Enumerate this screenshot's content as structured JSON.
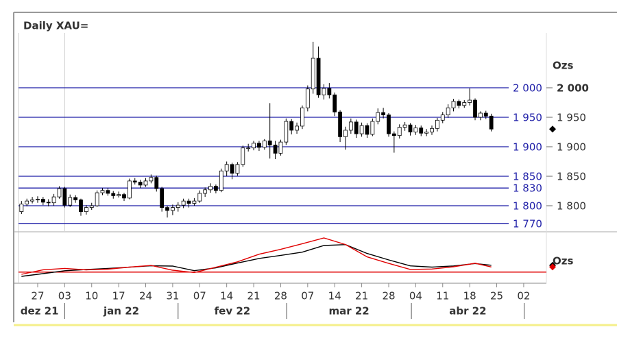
{
  "chart_data": {
    "type": "candlestick",
    "title": "Daily XAU=",
    "unit": "Ozs",
    "open": [
      1790,
      1803,
      1808,
      1810,
      1811,
      1806,
      1805,
      1815,
      1829,
      1801,
      1814,
      1810,
      1790,
      1797,
      1800,
      1822,
      1826,
      1821,
      1817,
      1819,
      1813,
      1842,
      1840,
      1835,
      1842,
      1848,
      1829,
      1797,
      1792,
      1797,
      1801,
      1808,
      1804,
      1808,
      1821,
      1827,
      1833,
      1826,
      1859,
      1870,
      1855,
      1870,
      1898,
      1898,
      1906,
      1899,
      1910,
      1903,
      1889,
      1908,
      1943,
      1928,
      1935,
      1966,
      1998,
      2050,
      1988,
      1999,
      1988,
      1959,
      1917,
      1928,
      1942,
      1922,
      1936,
      1921,
      1943,
      1958,
      1954,
      1922,
      1919,
      1933,
      1937,
      1925,
      1932,
      1923,
      1925,
      1931,
      1945,
      1954,
      1966,
      1977,
      1970,
      1975,
      1979,
      1950,
      1957,
      1952
    ],
    "high": [
      1808,
      1812,
      1815,
      1816,
      1815,
      1811,
      1820,
      1833,
      1832,
      1819,
      1818,
      1812,
      1801,
      1805,
      1826,
      1830,
      1830,
      1825,
      1824,
      1822,
      1846,
      1847,
      1844,
      1847,
      1853,
      1851,
      1832,
      1800,
      1802,
      1806,
      1812,
      1812,
      1813,
      1826,
      1831,
      1838,
      1836,
      1863,
      1875,
      1873,
      1874,
      1902,
      1905,
      1910,
      1910,
      1913,
      1974,
      1910,
      1912,
      1948,
      1947,
      1941,
      1970,
      2004,
      2078,
      2070,
      2006,
      2008,
      1992,
      1962,
      1934,
      1948,
      1946,
      1941,
      1940,
      1948,
      1965,
      1966,
      1957,
      1926,
      1938,
      1942,
      1940,
      1937,
      1936,
      1930,
      1936,
      1949,
      1959,
      1972,
      1981,
      1980,
      1979,
      1999,
      1982,
      1960,
      1961,
      1956
    ],
    "low": [
      1786,
      1799,
      1804,
      1805,
      1801,
      1799,
      1800,
      1812,
      1797,
      1798,
      1805,
      1783,
      1785,
      1793,
      1798,
      1818,
      1817,
      1812,
      1814,
      1808,
      1811,
      1836,
      1830,
      1832,
      1838,
      1824,
      1790,
      1780,
      1784,
      1790,
      1796,
      1797,
      1800,
      1805,
      1815,
      1822,
      1821,
      1823,
      1850,
      1845,
      1851,
      1866,
      1892,
      1894,
      1893,
      1895,
      1880,
      1879,
      1885,
      1903,
      1921,
      1922,
      1930,
      1960,
      1990,
      1983,
      1980,
      1982,
      1952,
      1908,
      1895,
      1922,
      1915,
      1917,
      1915,
      1918,
      1938,
      1948,
      1917,
      1890,
      1914,
      1927,
      1919,
      1920,
      1918,
      1918,
      1920,
      1926,
      1940,
      1949,
      1960,
      1965,
      1966,
      1970,
      1945,
      1945,
      1947,
      1926
    ],
    "close": [
      1803,
      1808,
      1810,
      1811,
      1806,
      1805,
      1815,
      1829,
      1801,
      1814,
      1810,
      1790,
      1797,
      1800,
      1822,
      1826,
      1821,
      1817,
      1819,
      1813,
      1842,
      1840,
      1835,
      1842,
      1848,
      1829,
      1797,
      1792,
      1797,
      1801,
      1808,
      1804,
      1808,
      1821,
      1827,
      1833,
      1826,
      1859,
      1870,
      1855,
      1870,
      1898,
      1898,
      1906,
      1899,
      1910,
      1903,
      1889,
      1908,
      1943,
      1928,
      1935,
      1966,
      1998,
      2050,
      1988,
      1999,
      1988,
      1959,
      1917,
      1928,
      1942,
      1922,
      1936,
      1921,
      1943,
      1958,
      1954,
      1922,
      1919,
      1933,
      1937,
      1925,
      1932,
      1923,
      1925,
      1931,
      1945,
      1954,
      1966,
      1977,
      1970,
      1975,
      1979,
      1950,
      1957,
      1952,
      1930
    ],
    "up_color": "#ffffff",
    "down_color": "#000000",
    "xlim": [
      -0.55,
      97.2
    ],
    "xticks": [
      {
        "value": 3,
        "label": "27"
      },
      {
        "value": 8,
        "label": "03"
      },
      {
        "value": 13,
        "label": "10"
      },
      {
        "value": 18,
        "label": "17"
      },
      {
        "value": 23,
        "label": "24"
      },
      {
        "value": 28,
        "label": "31"
      },
      {
        "value": 33,
        "label": "07"
      },
      {
        "value": 38,
        "label": "14"
      },
      {
        "value": 43,
        "label": "21"
      },
      {
        "value": 48,
        "label": "28"
      },
      {
        "value": 53,
        "label": "07"
      },
      {
        "value": 58,
        "label": "14"
      },
      {
        "value": 63,
        "label": "21"
      },
      {
        "value": 68,
        "label": "28"
      },
      {
        "value": 73,
        "label": "04"
      },
      {
        "value": 78,
        "label": "11"
      },
      {
        "value": 83,
        "label": "18"
      },
      {
        "value": 88,
        "label": "25"
      },
      {
        "value": 93,
        "label": "02"
      }
    ],
    "months": [
      "dez 21",
      "jan 22",
      "fev 22",
      "mar 22",
      "abr 22"
    ],
    "month_ticks": [
      8,
      29,
      49.1,
      72.2,
      93.1
    ],
    "ylim": [
      1757,
      2093
    ],
    "yticks": [
      {
        "value": 2000,
        "label": "2 000"
      },
      {
        "value": 1950,
        "label": "1 950"
      },
      {
        "value": 1900,
        "label": "1 900"
      },
      {
        "value": 1850,
        "label": "1 850"
      },
      {
        "value": 1800,
        "label": "1 800"
      }
    ],
    "levels": [
      {
        "value": 2000,
        "label": "2 000"
      },
      {
        "value": 1950,
        "label": "1 950"
      },
      {
        "value": 1900,
        "label": "1 900"
      },
      {
        "value": 1850,
        "label": "1 850"
      },
      {
        "value": 1830,
        "label": "1 830"
      },
      {
        "value": 1800,
        "label": "1 800"
      },
      {
        "value": 1770,
        "label": "1 770"
      }
    ],
    "level_color": "#1f1fa8",
    "indicator": {
      "type": "line",
      "unit": "Ozs",
      "x": [
        0,
        4,
        8,
        12,
        16,
        20,
        24,
        28,
        32,
        36,
        40,
        44,
        48,
        52,
        56,
        60,
        64,
        68,
        72,
        76,
        80,
        84,
        87
      ],
      "ylim": [
        0,
        100
      ],
      "baseline": 19,
      "baseline_color": "#e00000",
      "series": [
        {
          "color": "#000000",
          "values": [
            10,
            15.7,
            21.7,
            24.3,
            26.4,
            29.1,
            32,
            31.4,
            21.9,
            27.7,
            37.7,
            47.3,
            53.7,
            60.4,
            74.3,
            76.1,
            57.7,
            44.3,
            31.9,
            29.3,
            31.7,
            36.7,
            33.1
          ]
        },
        {
          "color": "#e00000",
          "values": [
            14.3,
            23.7,
            26.6,
            23.6,
            25,
            29.3,
            32.7,
            22.9,
            18,
            29,
            40.3,
            56.1,
            66.3,
            78,
            90,
            76.3,
            50.6,
            37,
            24.4,
            25.3,
            30,
            37.3,
            29.6
          ]
        }
      ]
    }
  }
}
